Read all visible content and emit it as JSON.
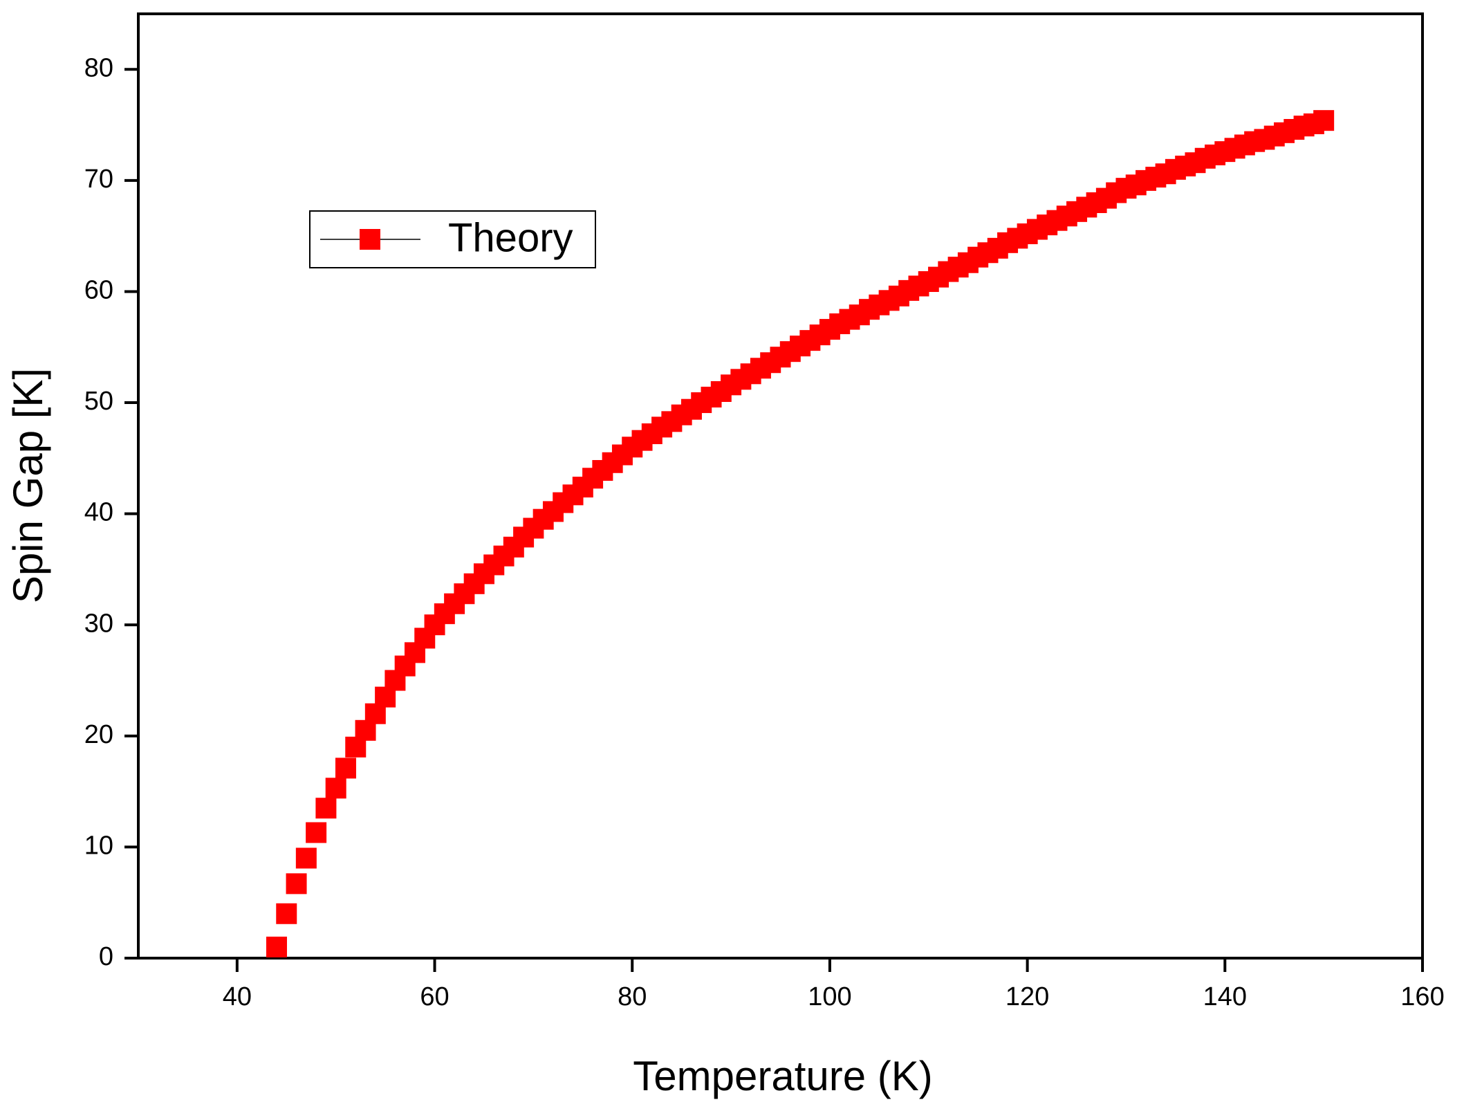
{
  "chart_data": {
    "type": "scatter",
    "x_label": "Temperature (K)",
    "y_label": "Spin Gap [K]",
    "xlim": [
      30,
      160
    ],
    "xticks": [
      40,
      60,
      80,
      100,
      120,
      140,
      160
    ],
    "ylim": [
      0,
      85
    ],
    "yticks": [
      0,
      10,
      20,
      30,
      40,
      50,
      60,
      70,
      80
    ],
    "legend": "upper left",
    "series": [
      {
        "name": "Theory",
        "color": "#ff0000",
        "marker": "square",
        "x": [
          44,
          45,
          46,
          47,
          48,
          49,
          50,
          51,
          52,
          53,
          54,
          55,
          56,
          57,
          58,
          59,
          60,
          61,
          62,
          63,
          64,
          65,
          66,
          67,
          68,
          69,
          70,
          71,
          72,
          73,
          74,
          75,
          76,
          77,
          78,
          79,
          80,
          81,
          82,
          83,
          84,
          85,
          86,
          87,
          88,
          89,
          90,
          91,
          92,
          93,
          94,
          95,
          96,
          97,
          98,
          99,
          100,
          101,
          102,
          103,
          104,
          105,
          106,
          107,
          108,
          109,
          110,
          111,
          112,
          113,
          114,
          115,
          116,
          117,
          118,
          119,
          120,
          121,
          122,
          123,
          124,
          125,
          126,
          127,
          128,
          129,
          130,
          131,
          132,
          133,
          134,
          135,
          136,
          137,
          138,
          139,
          140,
          141,
          142,
          143,
          144,
          145,
          146,
          147,
          148,
          149,
          150
        ],
        "values": [
          1,
          4,
          6.7,
          9,
          11.3,
          13.5,
          15.3,
          17.1,
          19,
          20.5,
          22,
          23.5,
          25,
          26.3,
          27.5,
          28.8,
          30,
          31,
          31.9,
          32.8,
          33.7,
          34.6,
          35.4,
          36.2,
          37,
          37.9,
          38.7,
          39.5,
          40.2,
          41,
          41.7,
          42.4,
          43.2,
          43.9,
          44.6,
          45.3,
          46,
          46.6,
          47.2,
          47.8,
          48.3,
          48.9,
          49.4,
          50,
          50.5,
          51,
          51.6,
          52.1,
          52.6,
          53.1,
          53.6,
          54.1,
          54.6,
          55.1,
          55.6,
          56.1,
          56.6,
          57.1,
          57.5,
          57.9,
          58.4,
          58.8,
          59.2,
          59.6,
          60.1,
          60.5,
          60.9,
          61.3,
          61.8,
          62.2,
          62.6,
          63.1,
          63.5,
          63.9,
          64.4,
          64.8,
          65.2,
          65.6,
          66,
          66.4,
          66.8,
          67.2,
          67.6,
          68,
          68.4,
          68.9,
          69.3,
          69.6,
          70,
          70.3,
          70.6,
          71,
          71.3,
          71.6,
          72,
          72.3,
          72.6,
          72.9,
          73.2,
          73.5,
          73.7,
          74,
          74.3,
          74.6,
          74.9,
          75.1,
          75.4
        ]
      }
    ]
  }
}
